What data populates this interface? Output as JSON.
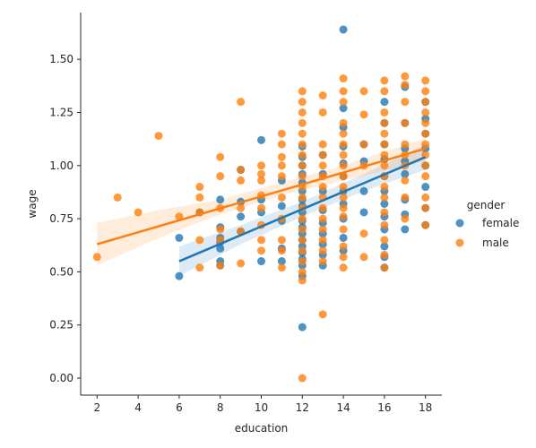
{
  "chart_data": {
    "type": "scatter",
    "xlabel": "education",
    "ylabel": "wage",
    "xlim": [
      1.2,
      18.8
    ],
    "ylim": [
      -0.08,
      1.72
    ],
    "xticks": [
      2,
      4,
      6,
      8,
      10,
      12,
      14,
      16,
      18
    ],
    "yticks": [
      0.0,
      0.25,
      0.5,
      0.75,
      1.0,
      1.25,
      1.5
    ],
    "ytick_labels": [
      "0.00",
      "0.25",
      "0.50",
      "0.75",
      "1.00",
      "1.25",
      "1.50"
    ],
    "grid": false,
    "legend": {
      "title": "gender",
      "placement": "right"
    },
    "series": [
      {
        "name": "female",
        "color": "#1f77b4",
        "points": [
          [
            6,
            0.48
          ],
          [
            6,
            0.66
          ],
          [
            7,
            0.78
          ],
          [
            8,
            0.53
          ],
          [
            8,
            0.55
          ],
          [
            8,
            0.61
          ],
          [
            8,
            0.64
          ],
          [
            8,
            0.66
          ],
          [
            8,
            0.71
          ],
          [
            8,
            0.84
          ],
          [
            9,
            0.69
          ],
          [
            9,
            0.76
          ],
          [
            9,
            0.83
          ],
          [
            9,
            0.98
          ],
          [
            10,
            0.55
          ],
          [
            10,
            0.78
          ],
          [
            10,
            0.84
          ],
          [
            10,
            1.12
          ],
          [
            11,
            0.55
          ],
          [
            11,
            0.61
          ],
          [
            11,
            0.74
          ],
          [
            11,
            0.81
          ],
          [
            11,
            0.93
          ],
          [
            12,
            0.24
          ],
          [
            12,
            0.48
          ],
          [
            12,
            0.53
          ],
          [
            12,
            0.56
          ],
          [
            12,
            0.59
          ],
          [
            12,
            0.62
          ],
          [
            12,
            0.65
          ],
          [
            12,
            0.68
          ],
          [
            12,
            0.71
          ],
          [
            12,
            0.74
          ],
          [
            12,
            0.78
          ],
          [
            12,
            0.81
          ],
          [
            12,
            0.84
          ],
          [
            12,
            0.88
          ],
          [
            12,
            0.92
          ],
          [
            12,
            0.96
          ],
          [
            12,
            1.0
          ],
          [
            12,
            1.04
          ],
          [
            12,
            1.09
          ],
          [
            13,
            0.53
          ],
          [
            13,
            0.58
          ],
          [
            13,
            0.63
          ],
          [
            13,
            0.68
          ],
          [
            13,
            0.73
          ],
          [
            13,
            0.79
          ],
          [
            13,
            0.88
          ],
          [
            13,
            0.96
          ],
          [
            13,
            1.05
          ],
          [
            14,
            0.6
          ],
          [
            14,
            0.66
          ],
          [
            14,
            0.75
          ],
          [
            14,
            0.82
          ],
          [
            14,
            0.88
          ],
          [
            14,
            0.95
          ],
          [
            14,
            1.01
          ],
          [
            14,
            1.09
          ],
          [
            14,
            1.18
          ],
          [
            14,
            1.27
          ],
          [
            14,
            1.64
          ],
          [
            15,
            0.78
          ],
          [
            15,
            0.88
          ],
          [
            15,
            1.02
          ],
          [
            15,
            1.1
          ],
          [
            16,
            0.52
          ],
          [
            16,
            0.57
          ],
          [
            16,
            0.62
          ],
          [
            16,
            0.7
          ],
          [
            16,
            0.76
          ],
          [
            16,
            0.82
          ],
          [
            16,
            0.88
          ],
          [
            16,
            0.95
          ],
          [
            16,
            1.03
          ],
          [
            16,
            1.1
          ],
          [
            16,
            1.2
          ],
          [
            16,
            1.3
          ],
          [
            17,
            0.7
          ],
          [
            17,
            0.77
          ],
          [
            17,
            0.84
          ],
          [
            17,
            0.96
          ],
          [
            17,
            1.02
          ],
          [
            17,
            1.08
          ],
          [
            17,
            1.2
          ],
          [
            17,
            1.37
          ],
          [
            18,
            0.72
          ],
          [
            18,
            0.8
          ],
          [
            18,
            0.9
          ],
          [
            18,
            1.0
          ],
          [
            18,
            1.08
          ],
          [
            18,
            1.15
          ],
          [
            18,
            1.22
          ],
          [
            18,
            1.3
          ]
        ],
        "fit": [
          [
            6,
            0.55
          ],
          [
            18,
            1.04
          ]
        ],
        "band": [
          [
            6,
            0.48,
            0.62
          ],
          [
            9,
            0.63,
            0.72
          ],
          [
            12,
            0.76,
            0.83
          ],
          [
            15,
            0.88,
            0.96
          ],
          [
            18,
            0.98,
            1.1
          ]
        ]
      },
      {
        "name": "male",
        "color": "#ff7f0e",
        "points": [
          [
            2,
            0.57
          ],
          [
            3,
            0.85
          ],
          [
            4,
            0.78
          ],
          [
            5,
            1.14
          ],
          [
            6,
            0.76
          ],
          [
            7,
            0.52
          ],
          [
            7,
            0.65
          ],
          [
            7,
            0.78
          ],
          [
            7,
            0.85
          ],
          [
            7,
            0.9
          ],
          [
            8,
            0.53
          ],
          [
            8,
            0.65
          ],
          [
            8,
            0.7
          ],
          [
            8,
            0.8
          ],
          [
            8,
            0.95
          ],
          [
            8,
            1.04
          ],
          [
            9,
            0.54
          ],
          [
            9,
            0.69
          ],
          [
            9,
            0.8
          ],
          [
            9,
            0.93
          ],
          [
            9,
            0.98
          ],
          [
            9,
            1.3
          ],
          [
            10,
            0.6
          ],
          [
            10,
            0.65
          ],
          [
            10,
            0.72
          ],
          [
            10,
            0.8
          ],
          [
            10,
            0.86
          ],
          [
            10,
            0.93
          ],
          [
            10,
            0.96
          ],
          [
            10,
            1.0
          ],
          [
            11,
            0.52
          ],
          [
            11,
            0.6
          ],
          [
            11,
            0.65
          ],
          [
            11,
            0.75
          ],
          [
            11,
            0.85
          ],
          [
            11,
            0.95
          ],
          [
            11,
            1.0
          ],
          [
            11,
            1.04
          ],
          [
            11,
            1.1
          ],
          [
            11,
            1.15
          ],
          [
            12,
            0.0
          ],
          [
            12,
            0.46
          ],
          [
            12,
            0.5
          ],
          [
            12,
            0.55
          ],
          [
            12,
            0.6
          ],
          [
            12,
            0.65
          ],
          [
            12,
            0.7
          ],
          [
            12,
            0.75
          ],
          [
            12,
            0.8
          ],
          [
            12,
            0.85
          ],
          [
            12,
            0.9
          ],
          [
            12,
            0.95
          ],
          [
            12,
            1.0
          ],
          [
            12,
            1.05
          ],
          [
            12,
            1.1
          ],
          [
            12,
            1.15
          ],
          [
            12,
            1.2
          ],
          [
            12,
            1.25
          ],
          [
            12,
            1.3
          ],
          [
            12,
            1.35
          ],
          [
            13,
            0.3
          ],
          [
            13,
            0.55
          ],
          [
            13,
            0.6
          ],
          [
            13,
            0.65
          ],
          [
            13,
            0.7
          ],
          [
            13,
            0.75
          ],
          [
            13,
            0.8
          ],
          [
            13,
            0.85
          ],
          [
            13,
            0.9
          ],
          [
            13,
            0.95
          ],
          [
            13,
            1.0
          ],
          [
            13,
            1.05
          ],
          [
            13,
            1.1
          ],
          [
            13,
            1.25
          ],
          [
            13,
            1.33
          ],
          [
            14,
            0.52
          ],
          [
            14,
            0.57
          ],
          [
            14,
            0.62
          ],
          [
            14,
            0.7
          ],
          [
            14,
            0.76
          ],
          [
            14,
            0.8
          ],
          [
            14,
            0.85
          ],
          [
            14,
            0.9
          ],
          [
            14,
            0.95
          ],
          [
            14,
            1.0
          ],
          [
            14,
            1.05
          ],
          [
            14,
            1.1
          ],
          [
            14,
            1.15
          ],
          [
            14,
            1.2
          ],
          [
            14,
            1.3
          ],
          [
            14,
            1.35
          ],
          [
            14,
            1.41
          ],
          [
            15,
            0.57
          ],
          [
            15,
            0.68
          ],
          [
            15,
            1.0
          ],
          [
            15,
            1.1
          ],
          [
            15,
            1.24
          ],
          [
            15,
            1.35
          ],
          [
            16,
            0.52
          ],
          [
            16,
            0.58
          ],
          [
            16,
            0.65
          ],
          [
            16,
            0.72
          ],
          [
            16,
            0.78
          ],
          [
            16,
            0.85
          ],
          [
            16,
            0.9
          ],
          [
            16,
            0.95
          ],
          [
            16,
            1.0
          ],
          [
            16,
            1.05
          ],
          [
            16,
            1.1
          ],
          [
            16,
            1.15
          ],
          [
            16,
            1.2
          ],
          [
            16,
            1.25
          ],
          [
            16,
            1.35
          ],
          [
            16,
            1.4
          ],
          [
            17,
            0.75
          ],
          [
            17,
            0.85
          ],
          [
            17,
            0.93
          ],
          [
            17,
            1.0
          ],
          [
            17,
            1.05
          ],
          [
            17,
            1.1
          ],
          [
            17,
            1.2
          ],
          [
            17,
            1.3
          ],
          [
            17,
            1.38
          ],
          [
            17,
            1.42
          ],
          [
            18,
            0.72
          ],
          [
            18,
            0.8
          ],
          [
            18,
            0.85
          ],
          [
            18,
            0.95
          ],
          [
            18,
            1.0
          ],
          [
            18,
            1.05
          ],
          [
            18,
            1.1
          ],
          [
            18,
            1.15
          ],
          [
            18,
            1.2
          ],
          [
            18,
            1.25
          ],
          [
            18,
            1.3
          ],
          [
            18,
            1.35
          ],
          [
            18,
            1.4
          ]
        ],
        "fit": [
          [
            2,
            0.63
          ],
          [
            18,
            1.08
          ]
        ],
        "band": [
          [
            2,
            0.53,
            0.73
          ],
          [
            5,
            0.66,
            0.79
          ],
          [
            8,
            0.77,
            0.84
          ],
          [
            11,
            0.86,
            0.92
          ],
          [
            14,
            0.93,
            1.0
          ],
          [
            18,
            1.02,
            1.13
          ]
        ]
      }
    ]
  }
}
